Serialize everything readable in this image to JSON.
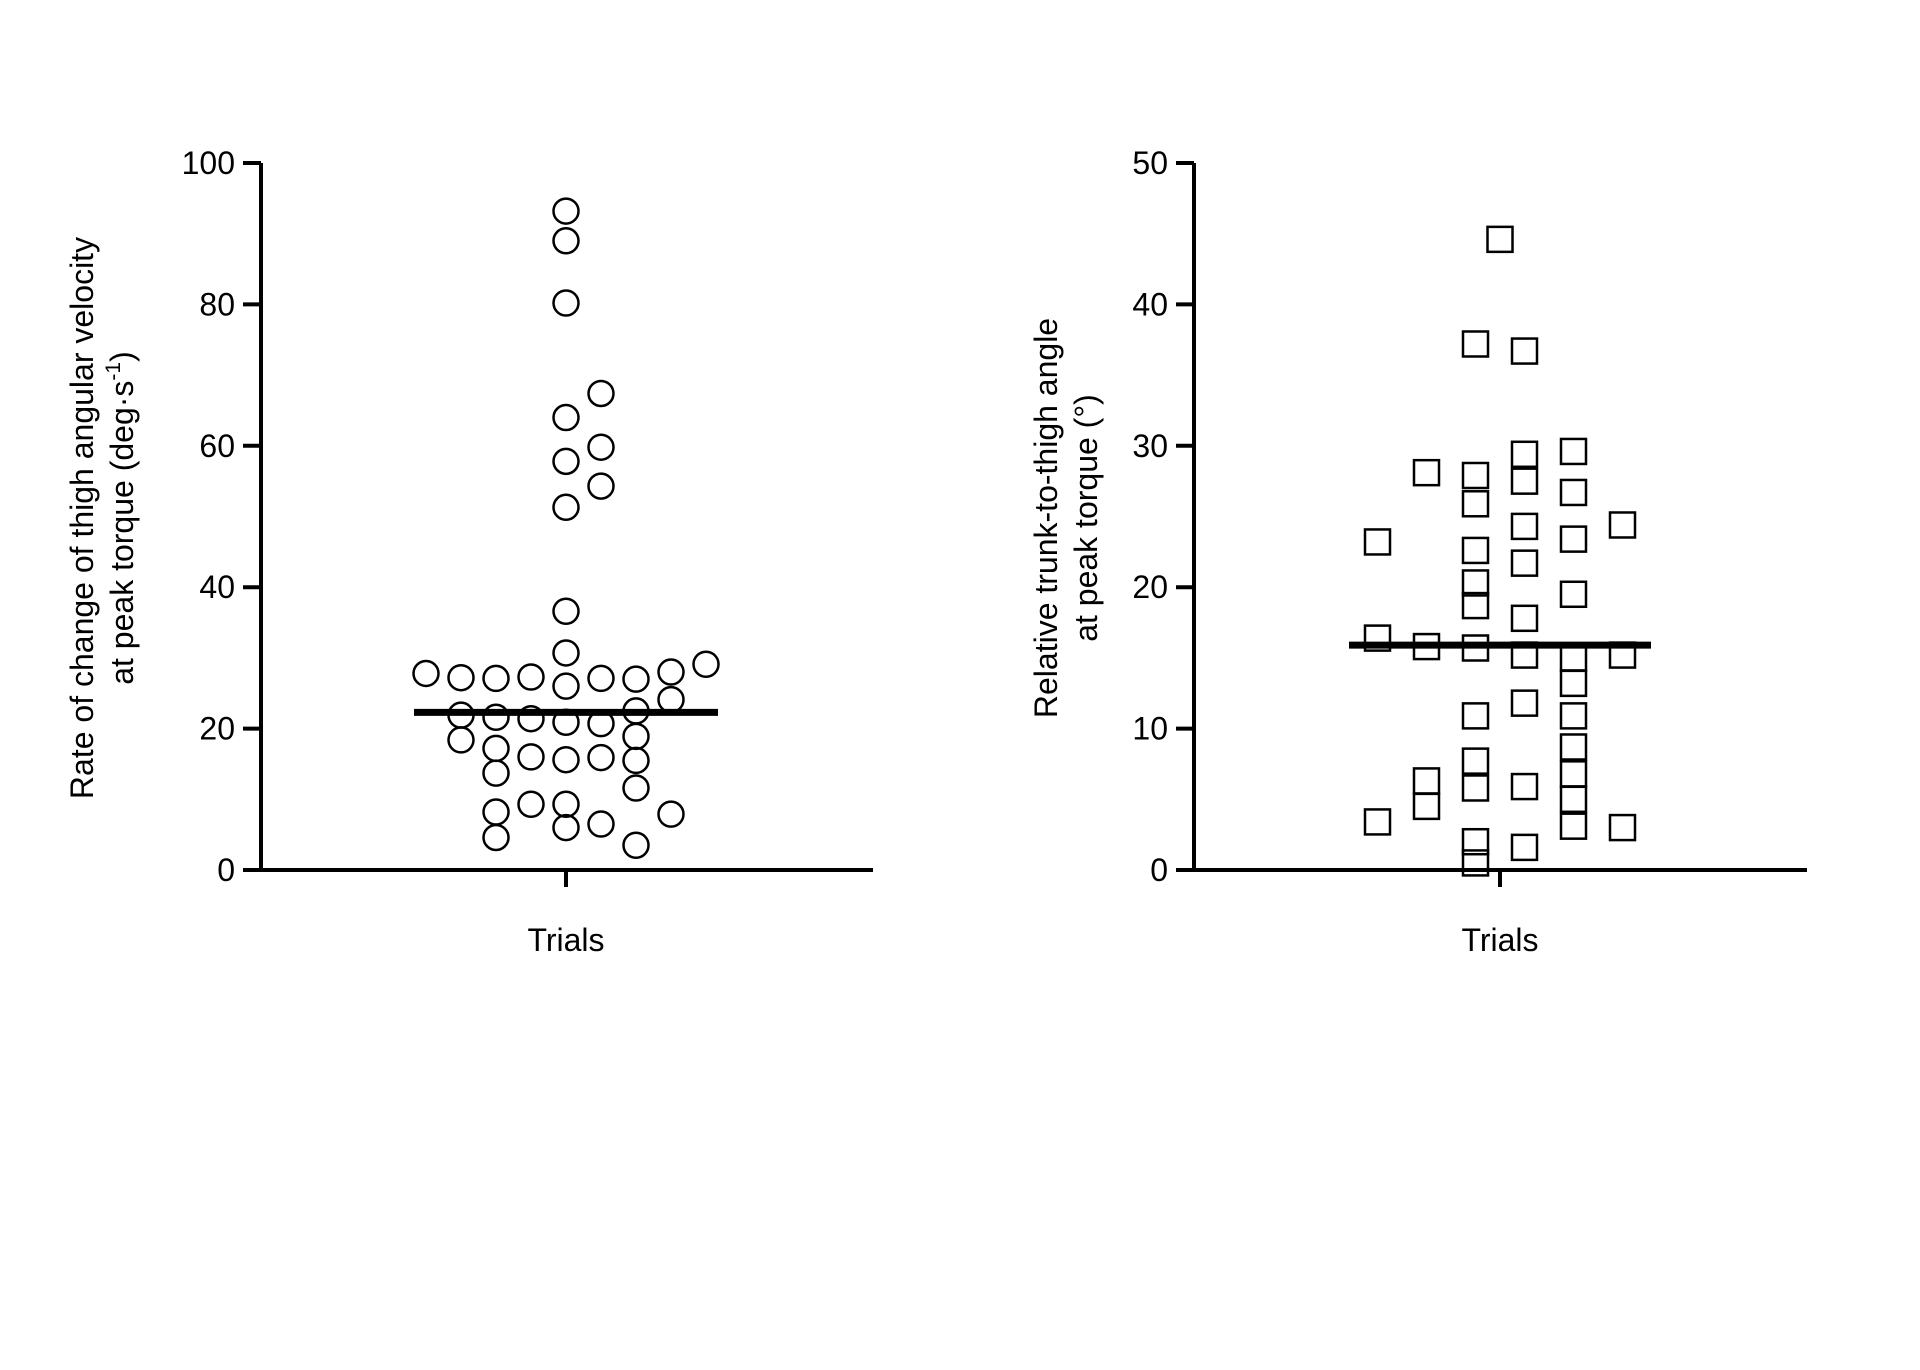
{
  "chart_data": [
    {
      "type": "scatter",
      "marker": "circle",
      "xlabel": "Trials",
      "ylabel_lines": [
        "Rate of change of thigh angular velocity",
        "at peak torque (deg·s",
        "-1",
        ")"
      ],
      "ylim": [
        0,
        100
      ],
      "yticks": [
        0,
        20,
        40,
        60,
        80,
        100
      ],
      "ytick_labels": [
        "0",
        "20",
        "40",
        "60",
        "80",
        "100"
      ],
      "median": 22.3,
      "points": [
        {
          "x": 0,
          "y": 93.2
        },
        {
          "x": 0,
          "y": 89.0
        },
        {
          "x": 0,
          "y": 80.2
        },
        {
          "x": 1,
          "y": 67.4
        },
        {
          "x": 0,
          "y": 64.0
        },
        {
          "x": 1,
          "y": 59.8
        },
        {
          "x": 0,
          "y": 57.8
        },
        {
          "x": 1,
          "y": 54.3
        },
        {
          "x": 0,
          "y": 51.3
        },
        {
          "x": 0,
          "y": 36.6
        },
        {
          "x": 0,
          "y": 30.7
        },
        {
          "x": -4,
          "y": 27.8
        },
        {
          "x": -3,
          "y": 27.2
        },
        {
          "x": -2,
          "y": 27.1
        },
        {
          "x": -1,
          "y": 27.3
        },
        {
          "x": 0,
          "y": 26.0
        },
        {
          "x": 1,
          "y": 27.1
        },
        {
          "x": 2,
          "y": 27.0
        },
        {
          "x": 3,
          "y": 28.0
        },
        {
          "x": 4,
          "y": 29.1
        },
        {
          "x": 3,
          "y": 24.1
        },
        {
          "x": 2,
          "y": 22.5
        },
        {
          "x": -3,
          "y": 21.9
        },
        {
          "x": -2,
          "y": 21.6
        },
        {
          "x": -1,
          "y": 21.4
        },
        {
          "x": 0,
          "y": 20.9
        },
        {
          "x": 1,
          "y": 20.7
        },
        {
          "x": -3,
          "y": 18.4
        },
        {
          "x": 2,
          "y": 18.9
        },
        {
          "x": -2,
          "y": 17.2
        },
        {
          "x": -1,
          "y": 16.0
        },
        {
          "x": 0,
          "y": 15.6
        },
        {
          "x": 1,
          "y": 15.9
        },
        {
          "x": 2,
          "y": 15.5
        },
        {
          "x": -2,
          "y": 13.7
        },
        {
          "x": 2,
          "y": 11.6
        },
        {
          "x": -1,
          "y": 9.3
        },
        {
          "x": 0,
          "y": 9.3
        },
        {
          "x": -2,
          "y": 8.2
        },
        {
          "x": 3,
          "y": 7.9
        },
        {
          "x": 0,
          "y": 6.0
        },
        {
          "x": 1,
          "y": 6.5
        },
        {
          "x": -2,
          "y": 4.6
        },
        {
          "x": 2,
          "y": 3.5
        }
      ]
    },
    {
      "type": "scatter",
      "marker": "square",
      "xlabel": "Trials",
      "ylabel_lines": [
        "Relative trunk-to-thigh angle",
        "at peak torque (°)"
      ],
      "ylim": [
        0,
        50
      ],
      "yticks": [
        0,
        10,
        20,
        30,
        40,
        50
      ],
      "ytick_labels": [
        "0",
        "10",
        "20",
        "30",
        "40",
        "50"
      ],
      "median": 15.9,
      "points": [
        {
          "x": 0,
          "y": 44.6
        },
        {
          "x": -1,
          "y": 37.2
        },
        {
          "x": 1,
          "y": 36.7
        },
        {
          "x": 1,
          "y": 29.4
        },
        {
          "x": 3,
          "y": 29.6
        },
        {
          "x": -3,
          "y": 28.1
        },
        {
          "x": -1,
          "y": 27.9
        },
        {
          "x": 1,
          "y": 27.5
        },
        {
          "x": 3,
          "y": 26.7
        },
        {
          "x": -1,
          "y": 25.9
        },
        {
          "x": 1,
          "y": 24.3
        },
        {
          "x": 5,
          "y": 24.4
        },
        {
          "x": -5,
          "y": 23.2
        },
        {
          "x": 3,
          "y": 23.4
        },
        {
          "x": -1,
          "y": 22.6
        },
        {
          "x": 1,
          "y": 21.7
        },
        {
          "x": -1,
          "y": 20.3
        },
        {
          "x": 3,
          "y": 19.5
        },
        {
          "x": -1,
          "y": 18.7
        },
        {
          "x": 1,
          "y": 17.8
        },
        {
          "x": -5,
          "y": 16.4
        },
        {
          "x": -3,
          "y": 15.8
        },
        {
          "x": -1,
          "y": 15.7
        },
        {
          "x": 1,
          "y": 15.2
        },
        {
          "x": 3,
          "y": 15.0
        },
        {
          "x": 5,
          "y": 15.2
        },
        {
          "x": 3,
          "y": 13.2
        },
        {
          "x": 1,
          "y": 11.8
        },
        {
          "x": -1,
          "y": 10.9
        },
        {
          "x": 3,
          "y": 10.9
        },
        {
          "x": 3,
          "y": 8.7
        },
        {
          "x": -1,
          "y": 7.7
        },
        {
          "x": 3,
          "y": 6.8
        },
        {
          "x": -3,
          "y": 6.3
        },
        {
          "x": -1,
          "y": 5.8
        },
        {
          "x": 1,
          "y": 5.9
        },
        {
          "x": 3,
          "y": 5.0
        },
        {
          "x": -3,
          "y": 4.5
        },
        {
          "x": -5,
          "y": 3.4
        },
        {
          "x": 3,
          "y": 3.1
        },
        {
          "x": 5,
          "y": 3.0
        },
        {
          "x": -1,
          "y": 2.0
        },
        {
          "x": 1,
          "y": 1.6
        },
        {
          "x": -1,
          "y": 0.5
        }
      ]
    }
  ]
}
